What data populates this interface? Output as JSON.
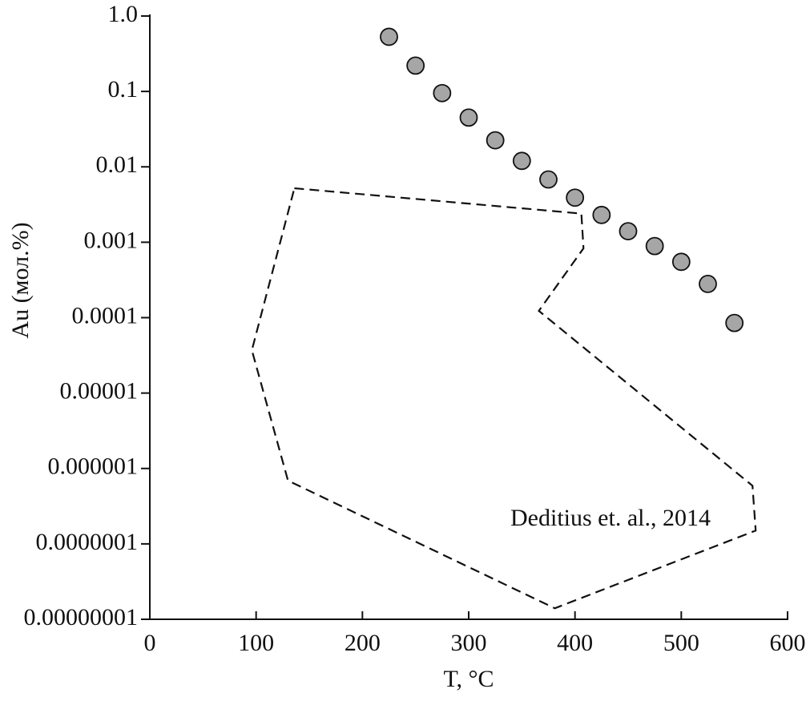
{
  "chart_data": {
    "type": "scatter",
    "x_label": "T, °C",
    "y_label": "Au (мол.%)",
    "annotation": "Deditius et. al., 2014",
    "xlim": [
      0,
      600
    ],
    "xticks": [
      0,
      100,
      200,
      300,
      400,
      500,
      600
    ],
    "ylim": [
      1e-08,
      1
    ],
    "y_scale": "log",
    "yticks": [
      {
        "value": 1,
        "label": "1.0"
      },
      0.1,
      0.01,
      0.001,
      0.0001,
      1e-05,
      1e-06,
      {
        "value": 1e-07,
        "label": "0.0000001"
      },
      {
        "value": 1e-08,
        "label": "0.00000001"
      }
    ],
    "series": [
      {
        "color": "#a6a6a6",
        "x": [
          225,
          250,
          275,
          300,
          325,
          350,
          375,
          400,
          425,
          450,
          475,
          500,
          525,
          550
        ],
        "values": [
          0.53,
          0.22,
          0.095,
          0.045,
          0.0225,
          0.012,
          0.0068,
          0.0039,
          0.0023,
          0.0014,
          0.00089,
          0.00055,
          0.00028,
          8.5e-05
        ]
      }
    ],
    "region": {
      "x": [
        136,
        406,
        408,
        366,
        567,
        570,
        381,
        130,
        96
      ],
      "values": [
        0.0052,
        0.0024,
        0.00083,
        0.000123,
        5.9e-07,
        1.5e-07,
        1.4e-08,
        6.9e-07,
        3.7e-05
      ]
    }
  }
}
